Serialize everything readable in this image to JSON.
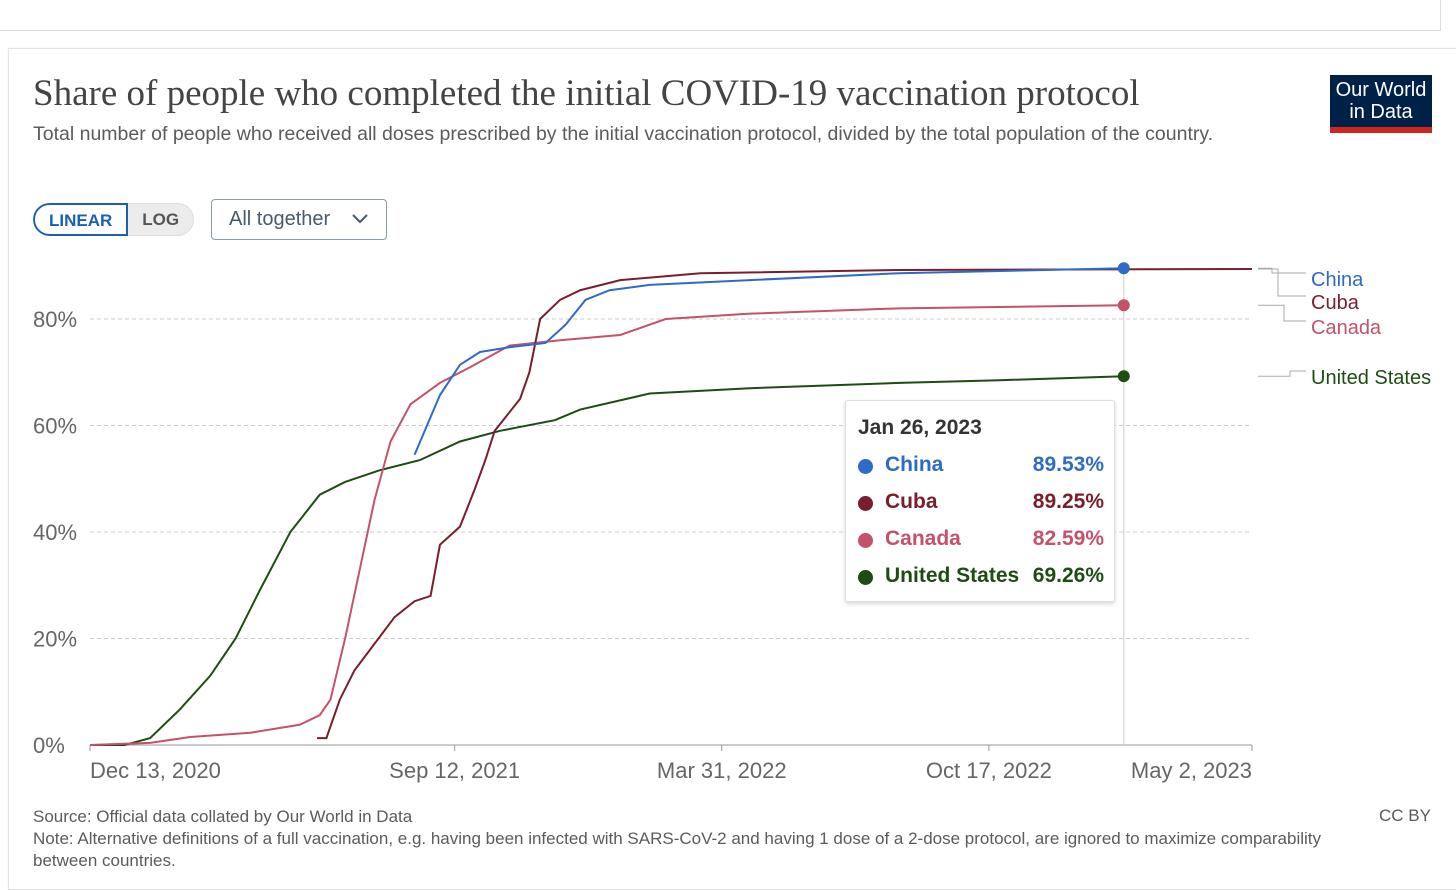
{
  "header": {
    "title": "Share of people who completed the initial COVID-19 vaccination protocol",
    "subtitle": "Total number of people who received all doses prescribed by the initial vaccination protocol, divided by the total population of the country.",
    "logo": "Our World in Data"
  },
  "controls": {
    "linear": "LINEAR",
    "log": "LOG",
    "dropdown": "All together"
  },
  "chart_data": {
    "type": "line",
    "title": "Share of people who completed the initial COVID-19 vaccination protocol",
    "x_unit": "days since Dec 13, 2020",
    "xlim": [
      0,
      870
    ],
    "ylim": [
      0,
      90
    ],
    "yticks": [
      0,
      20,
      40,
      60,
      80
    ],
    "ytick_labels": [
      "0%",
      "20%",
      "40%",
      "60%",
      "80%"
    ],
    "xticks": [
      0,
      273,
      473,
      673,
      870
    ],
    "xtick_labels": [
      "Dec 13, 2020",
      "Sep 12, 2021",
      "Mar 31, 2022",
      "Oct 17, 2022",
      "May 2, 2023"
    ],
    "grid": true,
    "legend": "right",
    "series": [
      {
        "name": "China",
        "color": "#2e6bc6",
        "points": [
          [
            243,
            54.5
          ],
          [
            262,
            65.7
          ],
          [
            277,
            71.4
          ],
          [
            292,
            73.8
          ],
          [
            314,
            74.7
          ],
          [
            341,
            75.5
          ],
          [
            356,
            78.9
          ],
          [
            371,
            83.6
          ],
          [
            389,
            85.4
          ],
          [
            419,
            86.4
          ],
          [
            494,
            87.3
          ],
          [
            606,
            88.6
          ],
          [
            774,
            89.53
          ]
        ]
      },
      {
        "name": "Cuba",
        "color": "#7a1e2c",
        "points": [
          [
            170,
            1.3
          ],
          [
            177,
            1.3
          ],
          [
            187,
            8.5
          ],
          [
            198,
            14
          ],
          [
            210,
            18
          ],
          [
            228,
            24
          ],
          [
            243,
            27
          ],
          [
            255,
            28
          ],
          [
            262,
            37.6
          ],
          [
            277,
            41
          ],
          [
            288,
            48
          ],
          [
            296,
            53.5
          ],
          [
            303,
            59
          ],
          [
            322,
            65
          ],
          [
            329,
            70
          ],
          [
            337,
            80
          ],
          [
            352,
            83.6
          ],
          [
            367,
            85.4
          ],
          [
            397,
            87.3
          ],
          [
            457,
            88.6
          ],
          [
            606,
            89.2
          ],
          [
            870,
            89.4
          ]
        ]
      },
      {
        "name": "Canada",
        "color": "#c4526a",
        "points": [
          [
            0,
            0
          ],
          [
            45,
            0.4
          ],
          [
            75,
            1.5
          ],
          [
            120,
            2.3
          ],
          [
            157,
            3.8
          ],
          [
            172,
            5.6
          ],
          [
            180,
            8.5
          ],
          [
            191,
            20
          ],
          [
            202,
            33
          ],
          [
            213,
            46
          ],
          [
            225,
            57
          ],
          [
            240,
            64
          ],
          [
            262,
            68
          ],
          [
            285,
            71
          ],
          [
            314,
            75
          ],
          [
            352,
            76
          ],
          [
            397,
            77
          ],
          [
            431,
            80
          ],
          [
            494,
            81
          ],
          [
            606,
            82
          ],
          [
            774,
            82.59
          ]
        ]
      },
      {
        "name": "United States",
        "color": "#1d4d12",
        "points": [
          [
            0,
            0
          ],
          [
            26,
            0
          ],
          [
            45,
            1.3
          ],
          [
            67,
            6.6
          ],
          [
            90,
            13
          ],
          [
            109,
            20
          ],
          [
            127,
            29
          ],
          [
            150,
            40
          ],
          [
            172,
            47
          ],
          [
            191,
            49.4
          ],
          [
            217,
            51.6
          ],
          [
            247,
            53.5
          ],
          [
            277,
            57
          ],
          [
            307,
            59
          ],
          [
            348,
            61
          ],
          [
            367,
            63
          ],
          [
            419,
            66
          ],
          [
            494,
            67
          ],
          [
            606,
            68
          ],
          [
            681,
            68.5
          ],
          [
            774,
            69.26
          ]
        ]
      }
    ],
    "hover": {
      "x": 774
    }
  },
  "tooltip": {
    "date": "Jan 26, 2023",
    "rows": [
      {
        "name": "China",
        "value": "89.53%",
        "color": "#2e6bc6"
      },
      {
        "name": "Cuba",
        "value": "89.25%",
        "color": "#7a1e2c"
      },
      {
        "name": "Canada",
        "value": "82.59%",
        "color": "#c4526a"
      },
      {
        "name": "United States",
        "value": "69.26%",
        "color": "#1d4d12"
      }
    ]
  },
  "footer": {
    "source": "Source: Official data collated by Our World in Data",
    "note": "Note: Alternative definitions of a full vaccination, e.g. having been infected with SARS-CoV-2 and having 1 dose of a 2-dose protocol, are ignored to maximize comparability between countries.",
    "license": "CC BY"
  }
}
